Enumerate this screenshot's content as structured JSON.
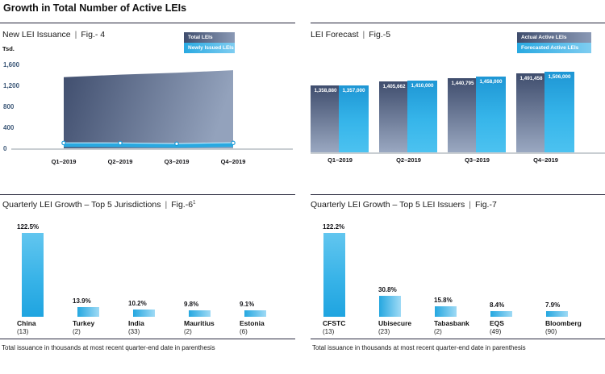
{
  "page_title": "Growth in Total Number of Active LEIs",
  "ui": {
    "title_separator": "|",
    "colors": {
      "accent_blue": "#29A9E1",
      "light_blue_gradient_end": "#7FCDF1",
      "dark_navy": "#3F4D6D",
      "navy_gradient_end": "#93A2BC",
      "axis_label_blue": "#3D5878",
      "axis_line_gray": "#C9CED2",
      "text_dark": "#1A1A1A"
    }
  },
  "chart_data": [
    {
      "id": "fig4",
      "type": "area",
      "title": "New LEI Issuance",
      "fig_label": "Fig.- 4",
      "unit": "Tsd.",
      "categories": [
        "Q1–2019",
        "Q2–2019",
        "Q3–2019",
        "Q4–2019"
      ],
      "series": [
        {
          "name": "Total LEIs",
          "values": [
            1358.88,
            1405.662,
            1440.795,
            1491.458
          ]
        },
        {
          "name": "Newly Issued LEIs",
          "values": [
            68,
            66,
            54,
            70
          ]
        }
      ],
      "ylim": [
        0,
        1600
      ],
      "yticks": [
        0,
        400,
        800,
        1200,
        1600
      ],
      "ytick_labels": [
        "0",
        "400",
        "800",
        "1,200",
        "1,600"
      ],
      "grid": false,
      "legend_position": "top-right"
    },
    {
      "id": "fig5",
      "type": "bar",
      "title": "LEI Forecast",
      "fig_label": "Fig.-5",
      "categories": [
        "Q1–2019",
        "Q2–2019",
        "Q3–2019",
        "Q4–2019"
      ],
      "series": [
        {
          "name": "Actual Active LEIs",
          "values": [
            1358880,
            1405662,
            1440795,
            1491458
          ],
          "labels": [
            "1,358,880",
            "1,405,662",
            "1,440,795",
            "1,491,458"
          ]
        },
        {
          "name": "Forecasted Active LEIs",
          "values": [
            1357000,
            1410000,
            1458000,
            1506000
          ],
          "labels": [
            "1,357,000",
            "1,410,000",
            "1,458,000",
            "1,506,000"
          ]
        }
      ],
      "value_labels_inside_bars": true,
      "legend_position": "top-right"
    },
    {
      "id": "fig6",
      "type": "bar",
      "title": "Quarterly LEI Growth – Top 5 Jurisdictions",
      "fig_label": "Fig.-6",
      "fig_superscript": "1",
      "categories": [
        "China",
        "Turkey",
        "India",
        "Mauritius",
        "Estonia"
      ],
      "counts": [
        "(13)",
        "(2)",
        "(33)",
        "(2)",
        "(6)"
      ],
      "values": [
        122.5,
        13.9,
        10.2,
        9.8,
        9.1
      ],
      "value_labels": [
        "122.5%",
        "13.9%",
        "10.2%",
        "9.8%",
        "9.1%"
      ],
      "footnote": "Total issuance in thousands at most recent quarter-end date in parenthesis"
    },
    {
      "id": "fig7",
      "type": "bar",
      "title": "Quarterly LEI Growth – Top 5 LEI Issuers",
      "fig_label": "Fig.-7",
      "categories": [
        "CFSTC",
        "Ubisecure",
        "Tabasbank",
        "EQS",
        "Bloomberg"
      ],
      "counts": [
        "(13)",
        "(23)",
        "(2)",
        "(49)",
        "(90)"
      ],
      "values": [
        122.2,
        30.8,
        15.8,
        8.4,
        7.9
      ],
      "value_labels": [
        "122.2%",
        "30.8%",
        "15.8%",
        "8.4%",
        "7.9%"
      ],
      "footnote": "Total issuance in thousands at most recent quarter-end date in parenthesis"
    }
  ]
}
